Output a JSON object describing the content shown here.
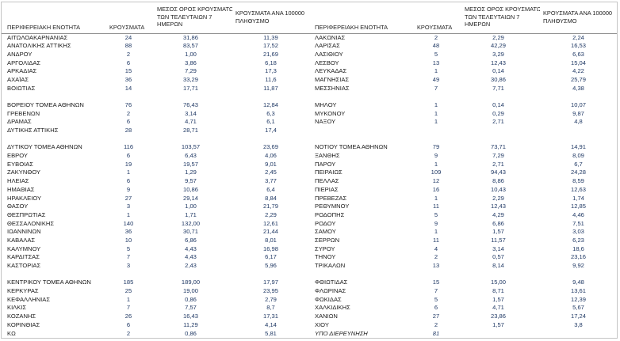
{
  "colors": {
    "number_text": "#1f3864",
    "body_text": "#1a1a1a",
    "outer_border": "#c4c4c4",
    "header_rule": "#8f8f8f"
  },
  "table": {
    "headers": {
      "region": "ΠΕΡΙΦΕΡΕΙΑΚΗ ΕΝΟΤΗΤΑ",
      "cases": "ΚΡΟΥΣΜΑΤΑ",
      "avg7_lines": [
        "ΜΕΣΟΣ ΟΡΟΣ ΚΡΟΥΣΜΑΤΩΝ",
        "ΤΩΝ ΤΕΛΕΥΤΑΙΩΝ 7",
        "ΗΜΕΡΩΝ"
      ],
      "per100k_lines": [
        "ΚΡΟΥΣΜΑΤΑ ΑΝΑ 100000",
        "ΠΛΗΘΥΣΜΟ"
      ]
    },
    "left_rows": [
      {
        "name": "ΑΙΤΩΛΟΑΚΑΡΝΑΝΙΑΣ",
        "cases": "24",
        "avg": "31,86",
        "per100k": "11,39"
      },
      {
        "name": "ΑΝΑΤΟΛΙΚΗΣ ΑΤΤΙΚΗΣ",
        "cases": "88",
        "avg": "83,57",
        "per100k": "17,52"
      },
      {
        "name": "ΑΝΔΡΟΥ",
        "cases": "2",
        "avg": "1,00",
        "per100k": "21,69"
      },
      {
        "name": "ΑΡΓΟΛΙΔΑΣ",
        "cases": "6",
        "avg": "3,86",
        "per100k": "6,18"
      },
      {
        "name": "ΑΡΚΑΔΙΑΣ",
        "cases": "15",
        "avg": "7,29",
        "per100k": "17,3"
      },
      {
        "name": "ΑΧΑΪΑΣ",
        "cases": "36",
        "avg": "33,29",
        "per100k": "11,6"
      },
      {
        "name": "ΒΟΙΩΤΙΑΣ",
        "cases": "14",
        "avg": "17,71",
        "per100k": "11,87"
      },
      {
        "blank": true
      },
      {
        "name": "ΒΟΡΕΙΟΥ ΤΟΜΕΑ ΑΘΗΝΩΝ",
        "cases": "76",
        "avg": "76,43",
        "per100k": "12,84"
      },
      {
        "name": "ΓΡΕΒΕΝΩΝ",
        "cases": "2",
        "avg": "3,14",
        "per100k": "6,3"
      },
      {
        "name": "ΔΡΑΜΑΣ",
        "cases": "6",
        "avg": "4,71",
        "per100k": "6,1"
      },
      {
        "name": "ΔΥΤΙΚΗΣ ΑΤΤΙΚΗΣ",
        "cases": "28",
        "avg": "28,71",
        "per100k": "17,4"
      },
      {
        "blank": true
      },
      {
        "name": "ΔΥΤΙΚΟΥ ΤΟΜΕΑ ΑΘΗΝΩΝ",
        "cases": "116",
        "avg": "103,57",
        "per100k": "23,69"
      },
      {
        "name": "ΕΒΡΟΥ",
        "cases": "6",
        "avg": "6,43",
        "per100k": "4,06"
      },
      {
        "name": "ΕΥΒΟΙΑΣ",
        "cases": "19",
        "avg": "19,57",
        "per100k": "9,01"
      },
      {
        "name": "ΖΑΚΥΝΘΟΥ",
        "cases": "1",
        "avg": "1,29",
        "per100k": "2,45"
      },
      {
        "name": "ΗΛΕΙΑΣ",
        "cases": "6",
        "avg": "9,57",
        "per100k": "3,77"
      },
      {
        "name": "ΗΜΑΘΙΑΣ",
        "cases": "9",
        "avg": "10,86",
        "per100k": "6,4"
      },
      {
        "name": "ΗΡΑΚΛΕΙΟΥ",
        "cases": "27",
        "avg": "29,14",
        "per100k": "8,84"
      },
      {
        "name": "ΘΑΣΟΥ",
        "cases": "3",
        "avg": "1,00",
        "per100k": "21,79"
      },
      {
        "name": "ΘΕΣΠΡΩΤΙΑΣ",
        "cases": "1",
        "avg": "1,71",
        "per100k": "2,29"
      },
      {
        "name": "ΘΕΣΣΑΛΟΝΙΚΗΣ",
        "cases": "140",
        "avg": "132,00",
        "per100k": "12,61"
      },
      {
        "name": "ΙΩΑΝΝΙΝΩΝ",
        "cases": "36",
        "avg": "30,71",
        "per100k": "21,44"
      },
      {
        "name": "ΚΑΒΑΛΑΣ",
        "cases": "10",
        "avg": "6,86",
        "per100k": "8,01"
      },
      {
        "name": "ΚΑΛΥΜΝΟΥ",
        "cases": "5",
        "avg": "4,43",
        "per100k": "16,98"
      },
      {
        "name": "ΚΑΡΔΙΤΣΑΣ",
        "cases": "7",
        "avg": "4,43",
        "per100k": "6,17"
      },
      {
        "name": "ΚΑΣΤΟΡΙΑΣ",
        "cases": "3",
        "avg": "2,43",
        "per100k": "5,96"
      },
      {
        "blank": true
      },
      {
        "name": "ΚΕΝΤΡΙΚΟΥ ΤΟΜΕΑ ΑΘΗΝΩΝ",
        "cases": "185",
        "avg": "189,00",
        "per100k": "17,97"
      },
      {
        "name": "ΚΕΡΚΥΡΑΣ",
        "cases": "25",
        "avg": "19,00",
        "per100k": "23,95"
      },
      {
        "name": "ΚΕΦΑΛΛΗΝΙΑΣ",
        "cases": "1",
        "avg": "0,86",
        "per100k": "2,79"
      },
      {
        "name": "ΚΙΛΚΙΣ",
        "cases": "7",
        "avg": "7,57",
        "per100k": "8,7"
      },
      {
        "name": "ΚΟΖΑΝΗΣ",
        "cases": "26",
        "avg": "16,43",
        "per100k": "17,31"
      },
      {
        "name": "ΚΟΡΙΝΘΙΑΣ",
        "cases": "6",
        "avg": "11,29",
        "per100k": "4,14"
      },
      {
        "name": "ΚΩ",
        "cases": "2",
        "avg": "0,86",
        "per100k": "5,81"
      }
    ],
    "right_rows": [
      {
        "name": "ΛΑΚΩΝΙΑΣ",
        "cases": "2",
        "avg": "2,29",
        "per100k": "2,24"
      },
      {
        "name": "ΛΑΡΙΣΑΣ",
        "cases": "48",
        "avg": "42,29",
        "per100k": "16,53"
      },
      {
        "name": "ΛΑΣΙΘΙΟΥ",
        "cases": "5",
        "avg": "3,29",
        "per100k": "6,63"
      },
      {
        "name": "ΛΕΣΒΟΥ",
        "cases": "13",
        "avg": "12,43",
        "per100k": "15,04"
      },
      {
        "name": "ΛΕΥΚΑΔΑΣ",
        "cases": "1",
        "avg": "0,14",
        "per100k": "4,22"
      },
      {
        "name": "ΜΑΓΝΗΣΙΑΣ",
        "cases": "49",
        "avg": "30,86",
        "per100k": "25,79"
      },
      {
        "name": "ΜΕΣΣΗΝΙΑΣ",
        "cases": "7",
        "avg": "7,71",
        "per100k": "4,38"
      },
      {
        "blank": true
      },
      {
        "name": "ΜΗΛΟΥ",
        "cases": "1",
        "avg": "0,14",
        "per100k": "10,07"
      },
      {
        "name": "ΜΥΚΟΝΟΥ",
        "cases": "1",
        "avg": "0,29",
        "per100k": "9,87"
      },
      {
        "name": "ΝΑΞΟΥ",
        "cases": "1",
        "avg": "2,71",
        "per100k": "4,8"
      },
      {
        "blank": true
      },
      {
        "blank": true
      },
      {
        "name": "ΝΟΤΙΟΥ ΤΟΜΕΑ ΑΘΗΝΩΝ",
        "cases": "79",
        "avg": "73,71",
        "per100k": "14,91"
      },
      {
        "name": "ΞΑΝΘΗΣ",
        "cases": "9",
        "avg": "7,29",
        "per100k": "8,09"
      },
      {
        "name": "ΠΑΡΟΥ",
        "cases": "1",
        "avg": "2,71",
        "per100k": "6,7"
      },
      {
        "name": "ΠΕΙΡΑΙΩΣ",
        "cases": "109",
        "avg": "94,43",
        "per100k": "24,28"
      },
      {
        "name": "ΠΕΛΛΑΣ",
        "cases": "12",
        "avg": "8,86",
        "per100k": "8,59"
      },
      {
        "name": "ΠΙΕΡΙΑΣ",
        "cases": "16",
        "avg": "10,43",
        "per100k": "12,63"
      },
      {
        "name": "ΠΡΕΒΕΖΑΣ",
        "cases": "1",
        "avg": "2,29",
        "per100k": "1,74"
      },
      {
        "name": "ΡΕΘΥΜΝΟΥ",
        "cases": "11",
        "avg": "12,43",
        "per100k": "12,85"
      },
      {
        "name": "ΡΟΔΟΠΗΣ",
        "cases": "5",
        "avg": "4,29",
        "per100k": "4,46"
      },
      {
        "name": "ΡΟΔΟΥ",
        "cases": "9",
        "avg": "6,86",
        "per100k": "7,51"
      },
      {
        "name": "ΣΑΜΟΥ",
        "cases": "1",
        "avg": "1,57",
        "per100k": "3,03"
      },
      {
        "name": "ΣΕΡΡΩΝ",
        "cases": "11",
        "avg": "11,57",
        "per100k": "6,23"
      },
      {
        "name": "ΣΥΡΟΥ",
        "cases": "4",
        "avg": "3,14",
        "per100k": "18,6"
      },
      {
        "name": "ΤΗΝΟΥ",
        "cases": "2",
        "avg": "0,57",
        "per100k": "23,16"
      },
      {
        "name": "ΤΡΙΚΑΛΩΝ",
        "cases": "13",
        "avg": "8,14",
        "per100k": "9,92"
      },
      {
        "blank": true
      },
      {
        "name": "ΦΘΙΩΤΙΔΑΣ",
        "cases": "15",
        "avg": "15,00",
        "per100k": "9,48"
      },
      {
        "name": "ΦΛΩΡΙΝΑΣ",
        "cases": "7",
        "avg": "8,71",
        "per100k": "13,61"
      },
      {
        "name": "ΦΩΚΙΔΑΣ",
        "cases": "5",
        "avg": "1,57",
        "per100k": "12,39"
      },
      {
        "name": "ΧΑΛΚΙΔΙΚΗΣ",
        "cases": "6",
        "avg": "4,71",
        "per100k": "5,67"
      },
      {
        "name": "ΧΑΝΙΩΝ",
        "cases": "27",
        "avg": "23,86",
        "per100k": "17,24"
      },
      {
        "name": "ΧΙΟΥ",
        "cases": "2",
        "avg": "1,57",
        "per100k": "3,8"
      },
      {
        "name": "ΥΠΟ ΔΙΕΡΕΥΝΗΣΗ",
        "cases": "81",
        "avg": "",
        "per100k": "",
        "italic": true
      }
    ]
  }
}
